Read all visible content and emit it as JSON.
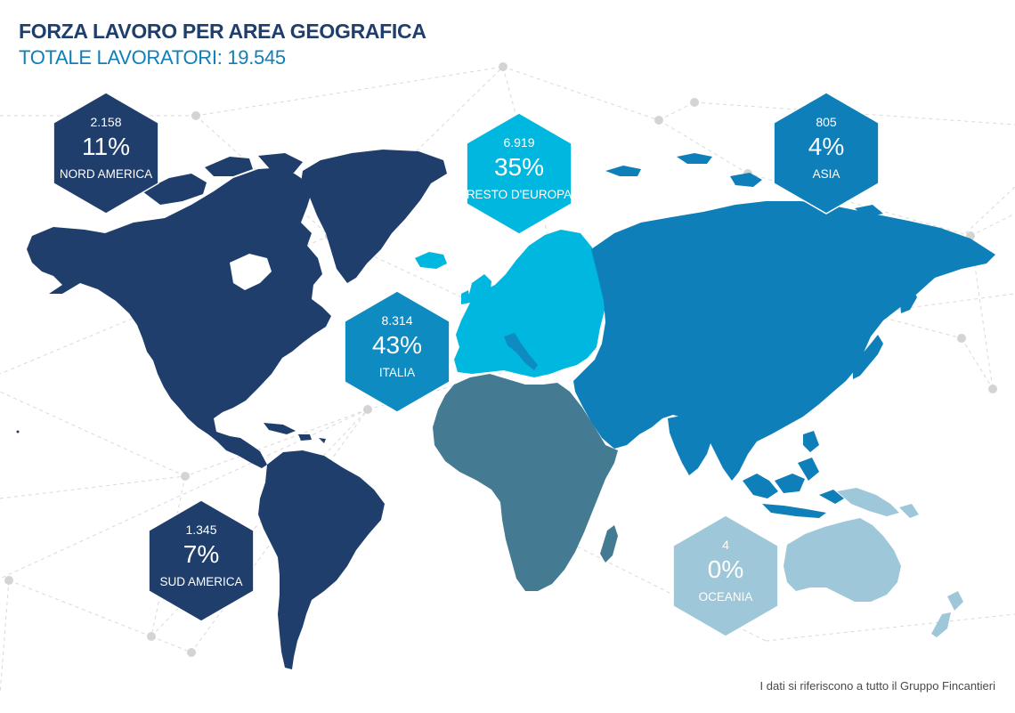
{
  "header": {
    "title": "FORZA LAVORO PER AREA GEOGRAFICA",
    "subtitle": "TOTALE LAVORATORI: 19.545"
  },
  "footer": {
    "note": "I dati si riferiscono a tutto il Gruppo Fincantieri"
  },
  "colors": {
    "north_south_america": "#1f3e6c",
    "italia": "#0e8bc0",
    "resto_europa": "#00b7e0",
    "asia": "#0f7fb9",
    "africa": "#447b93",
    "oceania": "#9fc7da",
    "network": "#d6d6d6"
  },
  "regions": [
    {
      "key": "nord_america",
      "count": "2.158",
      "percent": "11%",
      "label": "NORD AMERICA",
      "color": "#1f3e6c"
    },
    {
      "key": "resto_europa",
      "count": "6.919",
      "percent": "35%",
      "label": "RESTO D'EUROPA",
      "color": "#00b7e0"
    },
    {
      "key": "asia",
      "count": "805",
      "percent": "4%",
      "label": "ASIA",
      "color": "#0f7fb9"
    },
    {
      "key": "italia",
      "count": "8.314",
      "percent": "43%",
      "label": "ITALIA",
      "color": "#0e8bc0"
    },
    {
      "key": "sud_america",
      "count": "1.345",
      "percent": "7%",
      "label": "SUD AMERICA",
      "color": "#1f3e6c"
    },
    {
      "key": "oceania",
      "count": "4",
      "percent": "0%",
      "label": "OCEANIA",
      "color": "#9fc7da"
    }
  ]
}
